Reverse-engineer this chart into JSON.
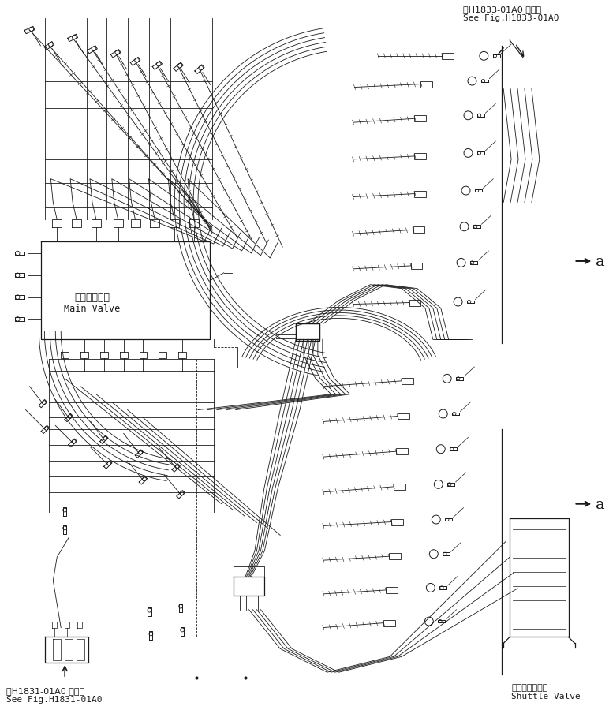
{
  "title_top_right_line1": "第H1833-01A0 図参照",
  "title_top_right_line2": "See Fig.H1833-01A0",
  "title_bottom_left_line1": "第H1831-01A0 図参照",
  "title_bottom_left_line2": "See Fig.H1831-01A0",
  "label_main_valve_jp": "メインバルブ",
  "label_main_valve_en": "Main Valve",
  "label_shuttle_valve_jp": "シャトルバルブ",
  "label_shuttle_valve_en": "Shuttle Valve",
  "label_a": "a",
  "bg_color": "#ffffff",
  "line_color": "#1a1a1a",
  "font_size_small": 7,
  "font_size_medium": 8,
  "font_size_large": 10
}
